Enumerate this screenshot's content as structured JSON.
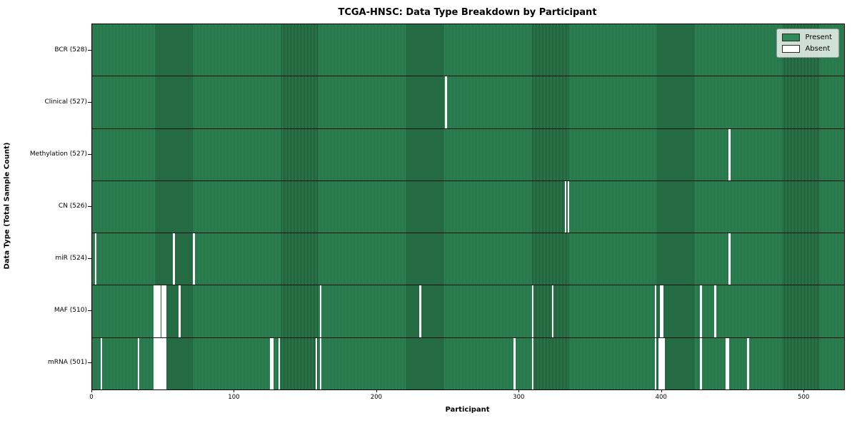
{
  "title": "TCGA-HNSC: Data Type Breakdown by Participant",
  "xlabel": "Participant",
  "ylabel": "Data Type (Total Sample Count)",
  "legend": {
    "present_label": "Present",
    "absent_label": "Absent"
  },
  "colors": {
    "present": "#2e8b57",
    "present_edge": "#1b4a2c",
    "absent": "#ffffff",
    "axis": "#000000"
  },
  "chart_data": {
    "type": "heatmap",
    "title": "TCGA-HNSC: Data Type Breakdown by Participant",
    "xlabel": "Participant",
    "ylabel": "Data Type (Total Sample Count)",
    "legend_entries": [
      "Present",
      "Absent"
    ],
    "legend_position": "upper right",
    "grid": false,
    "n_participants": 528,
    "xlim": [
      0,
      528
    ],
    "x_ticks": [
      0,
      100,
      200,
      300,
      400,
      500
    ],
    "rows": [
      {
        "name": "BCR",
        "label": "BCR (528)",
        "present_count": 528,
        "absent_participants": []
      },
      {
        "name": "Clinical",
        "label": "Clinical (527)",
        "present_count": 527,
        "absent_participants": [
          248
        ]
      },
      {
        "name": "Methylation",
        "label": "Methylation (527)",
        "present_count": 527,
        "absent_participants": [
          447
        ]
      },
      {
        "name": "CN",
        "label": "CN (526)",
        "present_count": 526,
        "absent_participants": [
          332,
          334
        ]
      },
      {
        "name": "miR",
        "label": "miR (524)",
        "present_count": 524,
        "absent_participants": [
          2,
          57,
          71,
          447
        ]
      },
      {
        "name": "MAF",
        "label": "MAF (510)",
        "present_count": 510,
        "absent_participants": [
          43,
          44,
          45,
          46,
          47,
          49,
          50,
          51,
          61,
          160,
          230,
          309,
          323,
          395,
          399,
          400,
          427,
          437
        ]
      },
      {
        "name": "mRNA",
        "label": "mRNA (501)",
        "present_count": 501,
        "absent_participants": [
          6,
          32,
          43,
          44,
          45,
          46,
          47,
          48,
          49,
          50,
          51,
          125,
          126,
          131,
          157,
          160,
          296,
          309,
          395,
          398,
          399,
          400,
          401,
          427,
          445,
          446,
          460
        ]
      }
    ]
  }
}
